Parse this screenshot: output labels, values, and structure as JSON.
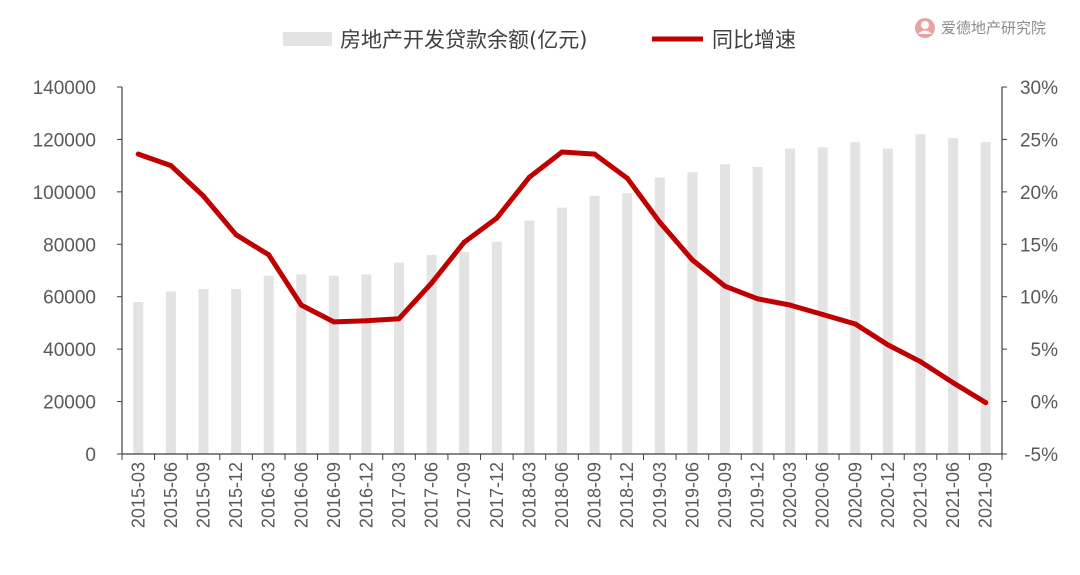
{
  "brand": {
    "text": "爱德地产研究院",
    "icon": "ade-logo-icon"
  },
  "colors": {
    "bar": "#e3e3e3",
    "line": "#c00000",
    "axis": "#404040",
    "text": "#595959"
  },
  "chart_data": {
    "type": "bar+line",
    "categories": [
      "2015-03",
      "2015-06",
      "2015-09",
      "2015-12",
      "2016-03",
      "2016-06",
      "2016-09",
      "2016-12",
      "2017-03",
      "2017-06",
      "2017-09",
      "2017-12",
      "2018-03",
      "2018-06",
      "2018-09",
      "2018-12",
      "2019-03",
      "2019-06",
      "2019-09",
      "2019-12",
      "2020-03",
      "2020-06",
      "2020-09",
      "2020-12",
      "2021-03",
      "2021-06",
      "2021-09"
    ],
    "series": [
      {
        "name": "房地产开发贷款余额(亿元)",
        "type": "bar",
        "axis": "left",
        "values": [
          58000,
          62000,
          63000,
          63000,
          68000,
          68500,
          68000,
          68500,
          73000,
          76000,
          77000,
          81000,
          89000,
          94000,
          98500,
          99500,
          105500,
          107500,
          110500,
          109500,
          116500,
          117000,
          119000,
          116500,
          122000,
          120500,
          119000
        ]
      },
      {
        "name": "同比增速",
        "type": "line",
        "axis": "right",
        "values": [
          23.6,
          22.5,
          19.6,
          15.9,
          14.0,
          9.2,
          7.6,
          7.7,
          7.9,
          11.3,
          15.2,
          17.5,
          21.4,
          23.8,
          23.6,
          21.3,
          17.1,
          13.5,
          11.0,
          9.8,
          9.2,
          8.3,
          7.4,
          5.4,
          3.8,
          1.8,
          -0.1
        ]
      }
    ],
    "y_left": {
      "ylim": [
        0,
        140000
      ],
      "ticks": [
        "0",
        "20000",
        "40000",
        "60000",
        "80000",
        "100000",
        "120000",
        "140000"
      ]
    },
    "y_right": {
      "ylim": [
        -5,
        30
      ],
      "ticks": [
        "-5%",
        "0%",
        "5%",
        "10%",
        "15%",
        "20%",
        "25%",
        "30%"
      ]
    },
    "legend_position": "top",
    "grid": false
  }
}
